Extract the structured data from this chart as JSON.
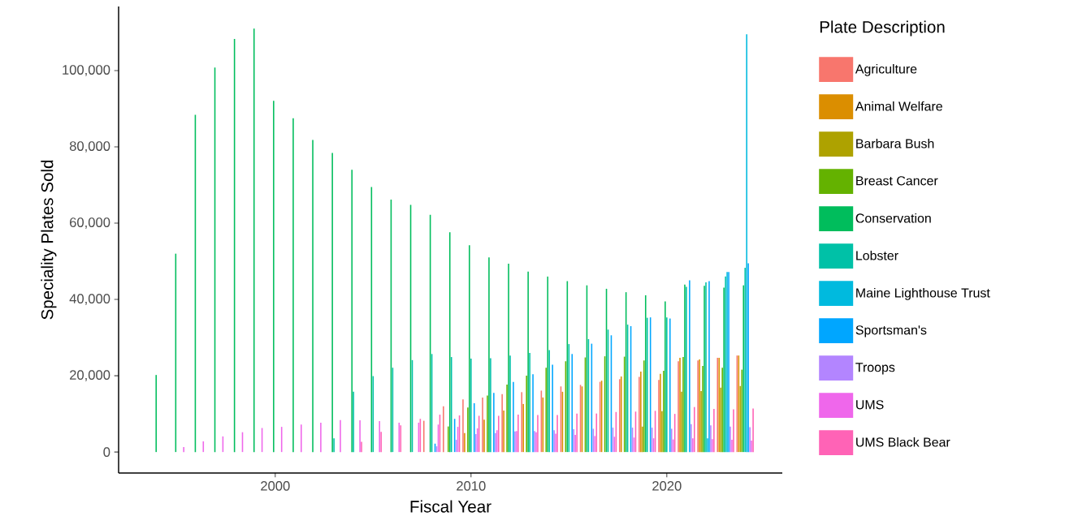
{
  "chart_data": {
    "type": "bar",
    "xlabel": "Fiscal Year",
    "ylabel": "Speciality Plates Sold",
    "legend_title": "Plate Description",
    "legend": "right",
    "x": [
      1994,
      1995,
      1996,
      1997,
      1998,
      1999,
      2000,
      2001,
      2002,
      2003,
      2004,
      2005,
      2006,
      2007,
      2008,
      2009,
      2010,
      2011,
      2012,
      2013,
      2014,
      2015,
      2016,
      2017,
      2018,
      2019,
      2020,
      2021,
      2022,
      2023,
      2024
    ],
    "xlim": [
      1992.0,
      2025.9
    ],
    "ylim": [
      -5500,
      116800
    ],
    "xticks": [
      2000,
      2010,
      2020
    ],
    "yticks": [
      {
        "value": 0,
        "label": "0"
      },
      {
        "value": 20000,
        "label": "20,000"
      },
      {
        "value": 40000,
        "label": "40,000"
      },
      {
        "value": 60000,
        "label": "60,000"
      },
      {
        "value": 80000,
        "label": "80,000"
      },
      {
        "value": 100000,
        "label": "100,000"
      }
    ],
    "series": [
      {
        "name": "Agriculture",
        "color": "#f8766d",
        "values": [
          null,
          null,
          null,
          null,
          null,
          null,
          null,
          null,
          null,
          null,
          null,
          null,
          null,
          null,
          8200,
          12000,
          13800,
          14300,
          15200,
          15700,
          16100,
          17200,
          17600,
          18400,
          19100,
          19700,
          18900,
          23800,
          24000,
          24700,
          25300
        ]
      },
      {
        "name": "Animal Welfare",
        "color": "#db8e00",
        "values": [
          null,
          null,
          null,
          null,
          null,
          null,
          null,
          null,
          null,
          null,
          null,
          null,
          null,
          null,
          null,
          null,
          5000,
          8500,
          10900,
          12600,
          14300,
          15800,
          17200,
          18700,
          19800,
          21100,
          20500,
          24700,
          24300,
          24700,
          25300
        ]
      },
      {
        "name": "Barbara Bush",
        "color": "#aea200",
        "values": [
          null,
          null,
          null,
          null,
          null,
          null,
          null,
          null,
          null,
          null,
          null,
          null,
          null,
          null,
          null,
          null,
          null,
          null,
          null,
          null,
          null,
          null,
          null,
          null,
          null,
          6700,
          10700,
          15800,
          16000,
          16900,
          17300
        ]
      },
      {
        "name": "Breast Cancer",
        "color": "#64b200",
        "values": [
          null,
          null,
          null,
          null,
          null,
          null,
          null,
          null,
          null,
          null,
          null,
          null,
          null,
          null,
          null,
          6700,
          11700,
          14800,
          17700,
          20000,
          22100,
          23800,
          24800,
          25100,
          25000,
          24000,
          21300,
          24900,
          22600,
          22100,
          21600
        ]
      },
      {
        "name": "Conservation",
        "color": "#00bd5c",
        "values": [
          20200,
          52000,
          88400,
          100800,
          108300,
          111000,
          92100,
          87500,
          81800,
          78400,
          74000,
          69500,
          66200,
          64800,
          62200,
          57600,
          54200,
          51000,
          49400,
          47300,
          46000,
          44800,
          43700,
          42800,
          41900,
          41100,
          39500,
          43900,
          43600,
          43100,
          43700
        ]
      },
      {
        "name": "Lobster",
        "color": "#00c1a7",
        "values": [
          null,
          null,
          null,
          null,
          null,
          null,
          null,
          null,
          null,
          3600,
          15800,
          19900,
          22100,
          24100,
          25700,
          24900,
          24500,
          24600,
          25300,
          26000,
          26700,
          28300,
          29600,
          32100,
          33400,
          35200,
          35300,
          43300,
          44500,
          46000,
          48300
        ]
      },
      {
        "name": "Maine Lighthouse Trust",
        "color": "#00bade",
        "values": [
          null,
          null,
          null,
          null,
          null,
          null,
          null,
          null,
          null,
          null,
          null,
          null,
          null,
          null,
          null,
          null,
          null,
          null,
          null,
          null,
          null,
          null,
          null,
          null,
          null,
          null,
          null,
          null,
          3600,
          47200,
          109500
        ]
      },
      {
        "name": "Sportsman's",
        "color": "#00a6ff",
        "values": [
          null,
          null,
          null,
          null,
          null,
          null,
          null,
          null,
          null,
          null,
          null,
          null,
          null,
          null,
          2200,
          8700,
          12800,
          15500,
          18400,
          20400,
          22900,
          25700,
          28400,
          30600,
          33000,
          35300,
          35000,
          45000,
          44800,
          47200,
          49500
        ]
      },
      {
        "name": "Troops",
        "color": "#b385ff",
        "values": [
          null,
          null,
          null,
          null,
          null,
          null,
          null,
          null,
          null,
          null,
          null,
          null,
          null,
          null,
          1500,
          3200,
          4700,
          5000,
          5400,
          5500,
          5700,
          6000,
          6100,
          6400,
          6400,
          6400,
          6100,
          7300,
          7000,
          6700,
          6500
        ]
      },
      {
        "name": "UMS",
        "color": "#ef67eb",
        "values": [
          null,
          1300,
          2800,
          4100,
          5200,
          6300,
          6600,
          7200,
          7700,
          8400,
          8300,
          8100,
          7700,
          7700,
          7200,
          6600,
          6200,
          5700,
          5500,
          5200,
          4800,
          4500,
          4200,
          4000,
          3800,
          3600,
          3300,
          3600,
          3400,
          3200,
          3000
        ]
      },
      {
        "name": "UMS Black Bear",
        "color": "#ff63b6",
        "values": [
          null,
          null,
          null,
          null,
          null,
          null,
          null,
          null,
          null,
          null,
          2700,
          5300,
          7000,
          8700,
          9800,
          9600,
          9500,
          9500,
          9800,
          9700,
          9700,
          10100,
          10100,
          10500,
          10600,
          10800,
          10000,
          11800,
          11300,
          11200,
          11400
        ]
      }
    ]
  }
}
